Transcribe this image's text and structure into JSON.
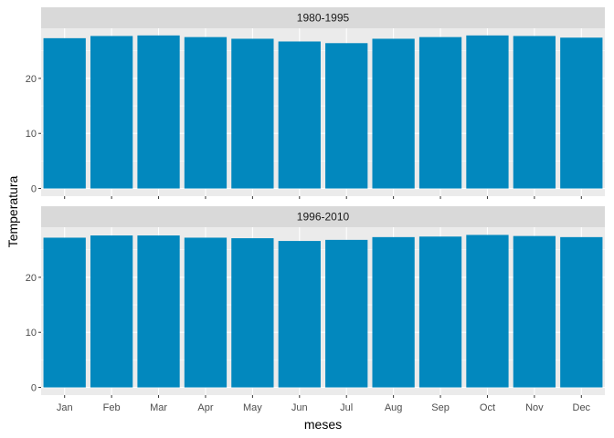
{
  "chart_data": {
    "type": "bar",
    "categories": [
      "Jan",
      "Feb",
      "Mar",
      "Apr",
      "May",
      "Jun",
      "Jul",
      "Aug",
      "Sep",
      "Oct",
      "Nov",
      "Dec"
    ],
    "facets": [
      {
        "label": "1980-1995",
        "values": [
          27.3,
          27.7,
          27.8,
          27.5,
          27.2,
          26.7,
          26.4,
          27.2,
          27.5,
          27.8,
          27.7,
          27.4
        ]
      },
      {
        "label": "1996-2010",
        "values": [
          27.2,
          27.6,
          27.6,
          27.2,
          27.1,
          26.6,
          26.8,
          27.3,
          27.4,
          27.7,
          27.5,
          27.3
        ]
      }
    ],
    "xlabel": "meses",
    "ylabel": "Temperatura",
    "yticks": [
      0,
      10,
      20
    ],
    "ylim": [
      -1.4,
      29.1
    ],
    "grid": true,
    "bar_color": "#0288BE",
    "panel_bg": "#EBEBEB",
    "strip_bg": "#D9D9D9"
  }
}
